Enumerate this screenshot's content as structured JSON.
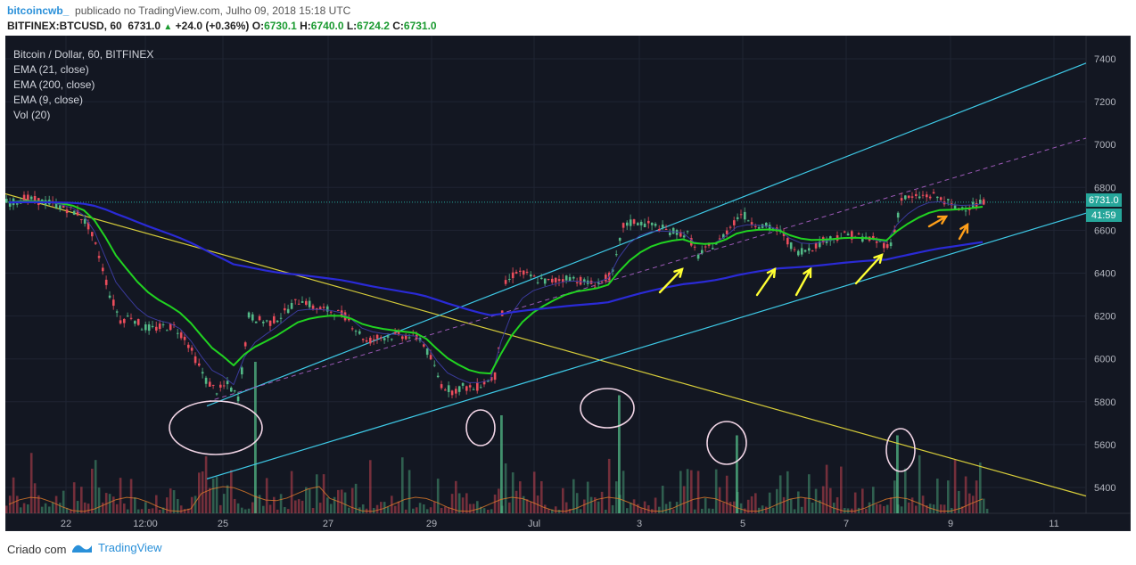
{
  "header": {
    "user": "bitcoincwb_",
    "published": "publicado no TradingView.com, Julho 09, 2018 15:18 UTC",
    "symbol": "BITFINEX:BTCUSD, 60",
    "last": "6731.0",
    "change": "+24.0 (+0.36%)",
    "o_label": "O:",
    "o": "6730.1",
    "h_label": "H:",
    "h": "6740.0",
    "l_label": "L:",
    "l": "6724.2",
    "c_label": "C:",
    "c": "6731.0"
  },
  "legend": {
    "title": "Bitcoin / Dollar, 60, BITFINEX",
    "ema21": "EMA (21, close)",
    "ema200": "EMA (200, close)",
    "ema9": "EMA (9, close)",
    "vol": "Vol (20)"
  },
  "price_tag": "6731.0",
  "time_tag": "41:59",
  "footer": {
    "created": "Criado com",
    "brand": "TradingView"
  },
  "colors": {
    "background": "#131722",
    "up": "#53b987",
    "down": "#eb4d5c",
    "ema21": "#21d321",
    "ema200": "#2a2ad6",
    "ema9": "#3a3a9a",
    "channel": "#3ec9e6",
    "downtrend": "#d6cc3a",
    "midline": "#9b59b6",
    "arrow_yellow": "#ffff33",
    "arrow_orange": "#ff9f1a",
    "circle": "#f2d5e6",
    "price_tag": "#26a69a"
  },
  "chart_data": {
    "type": "candlestick",
    "title": "Bitcoin / Dollar, 60, BITFINEX",
    "ylim": [
      5250,
      7480
    ],
    "y_ticks": [
      5400,
      5600,
      5800,
      6000,
      6200,
      6400,
      6600,
      6800,
      7000,
      7200,
      7400
    ],
    "x_tick_labels": [
      "22",
      "12:00",
      "25",
      "27",
      "29",
      "Jul",
      "3",
      "5",
      "7",
      "9",
      "11"
    ],
    "last_price": 6731.0,
    "price_path": [
      [
        0,
        6730
      ],
      [
        1,
        6750
      ],
      [
        4,
        6720
      ],
      [
        6,
        6680
      ],
      [
        7,
        6620
      ],
      [
        8,
        6480
      ],
      [
        9,
        6300
      ],
      [
        10,
        6180
      ],
      [
        11,
        6200
      ],
      [
        12,
        6150
      ],
      [
        13,
        6140
      ],
      [
        14,
        6150
      ],
      [
        15,
        6150
      ],
      [
        16,
        6100
      ],
      [
        17,
        6000
      ],
      [
        18,
        5900
      ],
      [
        19,
        5850
      ],
      [
        20,
        5880
      ],
      [
        21,
        5820
      ],
      [
        22,
        6200
      ],
      [
        23,
        6180
      ],
      [
        24,
        6170
      ],
      [
        25,
        6200
      ],
      [
        26,
        6250
      ],
      [
        27,
        6280
      ],
      [
        28,
        6240
      ],
      [
        30,
        6220
      ],
      [
        31,
        6200
      ],
      [
        32,
        6140
      ],
      [
        33,
        6080
      ],
      [
        34,
        6100
      ],
      [
        36,
        6110
      ],
      [
        38,
        6100
      ],
      [
        39,
        6000
      ],
      [
        40,
        5880
      ],
      [
        41,
        5850
      ],
      [
        42,
        5870
      ],
      [
        43,
        5860
      ],
      [
        44,
        5890
      ],
      [
        45,
        5920
      ],
      [
        46,
        6350
      ],
      [
        47,
        6410
      ],
      [
        48,
        6390
      ],
      [
        49,
        6370
      ],
      [
        50,
        6360
      ],
      [
        52,
        6380
      ],
      [
        54,
        6350
      ],
      [
        55,
        6360
      ],
      [
        56,
        6400
      ],
      [
        57,
        6620
      ],
      [
        58,
        6640
      ],
      [
        59,
        6630
      ],
      [
        60,
        6620
      ],
      [
        61,
        6600
      ],
      [
        62,
        6590
      ],
      [
        63,
        6580
      ],
      [
        64,
        6480
      ],
      [
        65,
        6520
      ],
      [
        66,
        6550
      ],
      [
        67,
        6620
      ],
      [
        68,
        6680
      ],
      [
        69,
        6640
      ],
      [
        70,
        6620
      ],
      [
        71,
        6610
      ],
      [
        72,
        6580
      ],
      [
        73,
        6500
      ],
      [
        74,
        6510
      ],
      [
        75,
        6530
      ],
      [
        76,
        6560
      ],
      [
        77,
        6570
      ],
      [
        78,
        6580
      ],
      [
        79,
        6570
      ],
      [
        80,
        6560
      ],
      [
        81,
        6540
      ],
      [
        82,
        6530
      ],
      [
        83,
        6750
      ],
      [
        84,
        6750
      ],
      [
        85,
        6760
      ],
      [
        86,
        6760
      ],
      [
        87,
        6740
      ],
      [
        88,
        6700
      ],
      [
        89,
        6710
      ],
      [
        90,
        6720
      ],
      [
        91,
        6731
      ]
    ],
    "volume_spikes": [
      [
        23,
        1.0
      ],
      [
        46,
        0.6
      ],
      [
        57,
        0.75
      ],
      [
        68,
        0.45
      ],
      [
        83,
        0.45
      ]
    ]
  }
}
